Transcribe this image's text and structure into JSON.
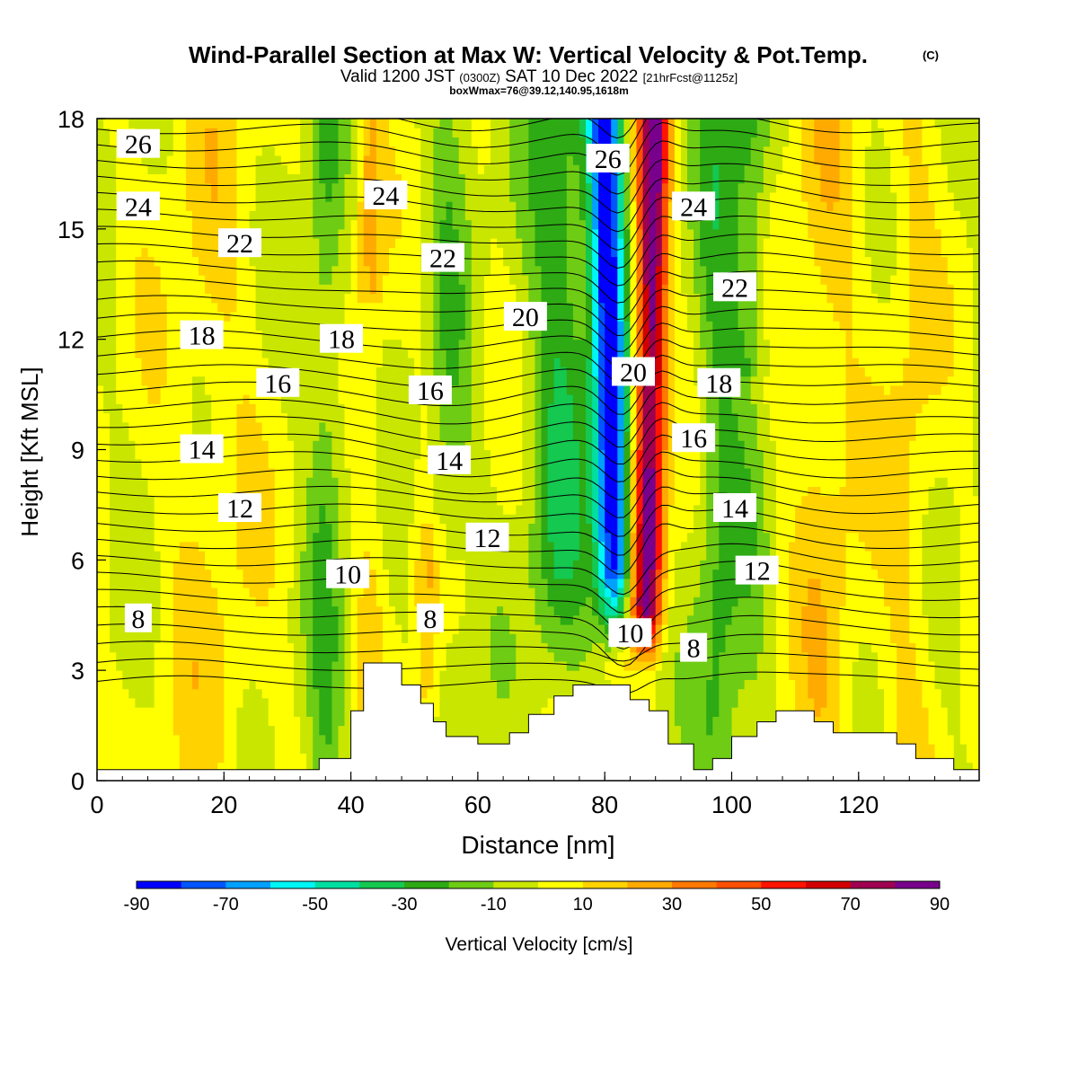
{
  "chart_data": {
    "type": "heatmap",
    "title": "Wind-Parallel Section at Max W: Vertical Velocity & Pot.Temp.",
    "copyright_mark": "(C)",
    "subtitle": {
      "pre": "Valid 1200 JST",
      "utc": "(0300Z)",
      "date": "SAT 10 Dec 2022",
      "forecast": "[21hrFcst@1125z]"
    },
    "subtitle2": "boxWmax=76@39.12,140.95,1618m",
    "xlabel": "Distance [nm]",
    "ylabel": "Height [Kft MSL]",
    "xlim": [
      0,
      139
    ],
    "ylim": [
      0,
      18
    ],
    "x_ticks": [
      "0",
      "20",
      "40",
      "60",
      "80",
      "100",
      "120"
    ],
    "y_ticks": [
      "0",
      "3",
      "6",
      "9",
      "12",
      "15",
      "18"
    ],
    "colorbar": {
      "label": "Vertical Velocity [cm/s]",
      "tick_labels": [
        "-90",
        "-70",
        "-50",
        "-30",
        "-10",
        "10",
        "30",
        "50",
        "70",
        "90"
      ],
      "colors": [
        "#0000ff",
        "#0055ff",
        "#00a0ff",
        "#00f5f5",
        "#00dfa0",
        "#14c850",
        "#2daa14",
        "#6ecc14",
        "#c8e600",
        "#ffff00",
        "#ffd200",
        "#ffaa00",
        "#ff7800",
        "#ff5000",
        "#ff1400",
        "#d20000",
        "#a00050",
        "#78008c"
      ]
    },
    "vertical_velocity_features": [
      {
        "kind": "downdraft",
        "x_center": 81,
        "y_range": [
          3.5,
          18
        ],
        "min_value": -90
      },
      {
        "kind": "updraft",
        "x_center": 87,
        "y_range": [
          3,
          18
        ],
        "max_value": 76
      }
    ],
    "theta_contour_labels": [
      {
        "text": "26",
        "x": 6.5,
        "y": 17.3
      },
      {
        "text": "24",
        "x": 6.5,
        "y": 15.6
      },
      {
        "text": "22",
        "x": 22.5,
        "y": 14.6
      },
      {
        "text": "18",
        "x": 16.5,
        "y": 12.1
      },
      {
        "text": "16",
        "x": 28.5,
        "y": 10.8
      },
      {
        "text": "14",
        "x": 16.5,
        "y": 9.0
      },
      {
        "text": "12",
        "x": 22.5,
        "y": 7.4
      },
      {
        "text": "8",
        "x": 6.5,
        "y": 4.4
      },
      {
        "text": "24",
        "x": 45.5,
        "y": 15.9
      },
      {
        "text": "22",
        "x": 54.5,
        "y": 14.2
      },
      {
        "text": "20",
        "x": 67.5,
        "y": 12.6
      },
      {
        "text": "18",
        "x": 38.5,
        "y": 12.0
      },
      {
        "text": "16",
        "x": 52.5,
        "y": 10.6
      },
      {
        "text": "14",
        "x": 55.5,
        "y": 8.7
      },
      {
        "text": "12",
        "x": 61.5,
        "y": 6.6
      },
      {
        "text": "10",
        "x": 39.5,
        "y": 5.6
      },
      {
        "text": "8",
        "x": 52.5,
        "y": 4.4
      },
      {
        "text": "26",
        "x": 80.5,
        "y": 16.9
      },
      {
        "text": "24",
        "x": 94.0,
        "y": 15.6
      },
      {
        "text": "22",
        "x": 100.5,
        "y": 13.4
      },
      {
        "text": "20",
        "x": 84.5,
        "y": 11.1
      },
      {
        "text": "18",
        "x": 98.0,
        "y": 10.8
      },
      {
        "text": "16",
        "x": 94.0,
        "y": 9.3
      },
      {
        "text": "14",
        "x": 100.5,
        "y": 7.4
      },
      {
        "text": "12",
        "x": 104.0,
        "y": 5.7
      },
      {
        "text": "10",
        "x": 84.0,
        "y": 4.0
      },
      {
        "text": "8",
        "x": 94.0,
        "y": 3.6
      }
    ],
    "terrain_kft": [
      [
        0,
        0.3
      ],
      [
        35,
        0.3
      ],
      [
        35,
        0.6
      ],
      [
        40,
        0.6
      ],
      [
        40,
        1.9
      ],
      [
        42,
        1.9
      ],
      [
        42,
        3.2
      ],
      [
        48,
        3.2
      ],
      [
        48,
        2.6
      ],
      [
        51,
        2.6
      ],
      [
        51,
        2.1
      ],
      [
        53,
        2.1
      ],
      [
        53,
        1.6
      ],
      [
        55,
        1.6
      ],
      [
        55,
        1.2
      ],
      [
        60,
        1.2
      ],
      [
        60,
        1.0
      ],
      [
        65,
        1.0
      ],
      [
        65,
        1.3
      ],
      [
        68,
        1.3
      ],
      [
        68,
        1.8
      ],
      [
        72,
        1.8
      ],
      [
        72,
        2.3
      ],
      [
        75,
        2.3
      ],
      [
        75,
        2.6
      ],
      [
        84,
        2.6
      ],
      [
        84,
        2.2
      ],
      [
        87,
        2.2
      ],
      [
        87,
        1.9
      ],
      [
        90,
        1.9
      ],
      [
        90,
        1.0
      ],
      [
        94,
        1.0
      ],
      [
        94,
        0.3
      ],
      [
        97,
        0.3
      ],
      [
        97,
        0.6
      ],
      [
        100,
        0.6
      ],
      [
        100,
        1.2
      ],
      [
        104,
        1.2
      ],
      [
        104,
        1.6
      ],
      [
        107,
        1.6
      ],
      [
        107,
        1.9
      ],
      [
        113,
        1.9
      ],
      [
        113,
        1.6
      ],
      [
        116,
        1.6
      ],
      [
        116,
        1.3
      ],
      [
        126,
        1.3
      ],
      [
        126,
        1.0
      ],
      [
        129,
        1.0
      ],
      [
        129,
        0.6
      ],
      [
        135,
        0.6
      ],
      [
        135,
        0.3
      ],
      [
        139,
        0.3
      ]
    ]
  }
}
